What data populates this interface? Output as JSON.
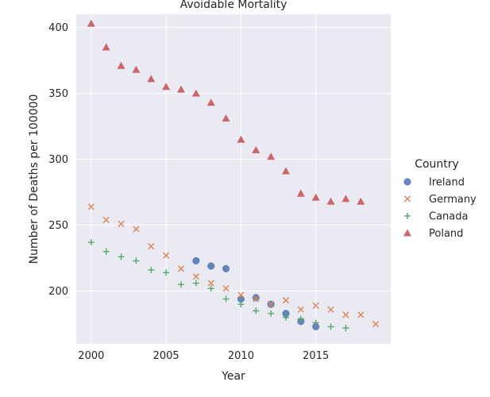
{
  "chart_data": {
    "type": "scatter",
    "title": "Avoidable Mortality",
    "xlabel": "Year",
    "ylabel": "Number of Deaths per 100000",
    "xlim": [
      1999,
      2020
    ],
    "ylim": [
      160,
      410
    ],
    "xticks": [
      2000,
      2005,
      2010,
      2015
    ],
    "yticks": [
      200,
      250,
      300,
      350,
      400
    ],
    "grid": true,
    "legend_title": "Country",
    "legend_position": "right",
    "series": [
      {
        "name": "Ireland",
        "marker": "circle",
        "color": "#4C72B0",
        "x": [
          2007,
          2008,
          2009,
          2010,
          2011,
          2012,
          2013,
          2014,
          2015
        ],
        "y": [
          223,
          219,
          217,
          194,
          195,
          190,
          183,
          177,
          173
        ]
      },
      {
        "name": "Germany",
        "marker": "x",
        "color": "#DD8452",
        "x": [
          2000,
          2001,
          2002,
          2003,
          2004,
          2005,
          2006,
          2007,
          2008,
          2009,
          2010,
          2011,
          2012,
          2013,
          2014,
          2015,
          2016,
          2017,
          2018,
          2019
        ],
        "y": [
          264,
          254,
          251,
          247,
          234,
          227,
          217,
          211,
          206,
          202,
          197,
          194,
          190,
          193,
          186,
          189,
          186,
          182,
          182,
          175
        ]
      },
      {
        "name": "Canada",
        "marker": "plus",
        "color": "#55A868",
        "x": [
          2000,
          2001,
          2002,
          2003,
          2004,
          2005,
          2006,
          2007,
          2008,
          2009,
          2010,
          2011,
          2012,
          2013,
          2014,
          2015,
          2016,
          2017
        ],
        "y": [
          237,
          230,
          226,
          223,
          216,
          214,
          205,
          206,
          202,
          194,
          190,
          185,
          183,
          180,
          179,
          176,
          173,
          172
        ]
      },
      {
        "name": "Poland",
        "marker": "triangle",
        "color": "#C44E52",
        "x": [
          2000,
          2001,
          2002,
          2003,
          2004,
          2005,
          2006,
          2007,
          2008,
          2009,
          2010,
          2011,
          2012,
          2013,
          2014,
          2015,
          2016,
          2017,
          2018
        ],
        "y": [
          403,
          385,
          371,
          368,
          361,
          355,
          353,
          350,
          343,
          331,
          315,
          307,
          302,
          291,
          274,
          271,
          268,
          270,
          268
        ]
      }
    ]
  }
}
